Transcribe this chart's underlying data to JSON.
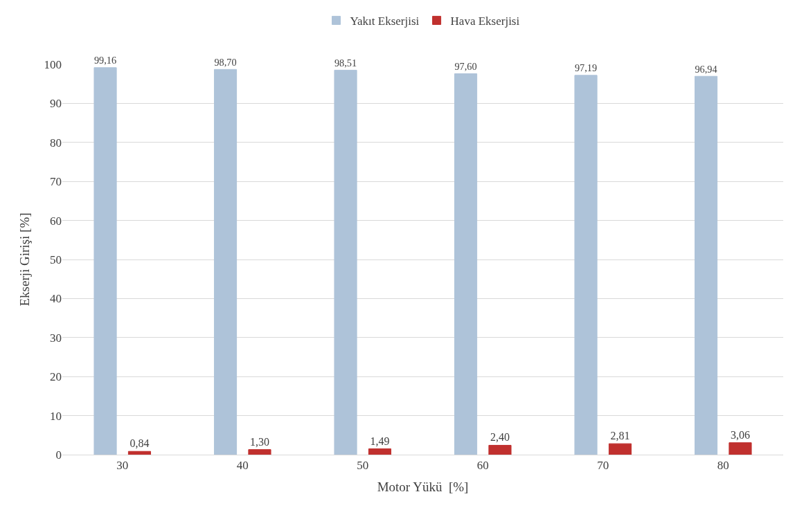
{
  "chart_data": {
    "type": "bar",
    "xlabel": "Motor Yükü  [%]",
    "ylabel": "Ekserji Girişi [%]",
    "categories": [
      "30",
      "40",
      "50",
      "60",
      "70",
      "80"
    ],
    "series": [
      {
        "name": "Yakıt Ekserjisi",
        "color": "#aec3d9",
        "values": [
          99.16,
          98.7,
          98.51,
          97.6,
          97.19,
          96.94
        ],
        "value_labels": [
          "99,16",
          "98,70",
          "98,51",
          "97,60",
          "97,19",
          "96,94"
        ]
      },
      {
        "name": "Hava Ekserjisi",
        "color": "#c0302e",
        "values": [
          0.84,
          1.3,
          1.49,
          2.4,
          2.81,
          3.06
        ],
        "value_labels": [
          "0,84",
          "1,30",
          "1,49",
          "2,40",
          "2,81",
          "3,06"
        ]
      }
    ],
    "ylim": [
      0,
      100
    ],
    "yticks": [
      0,
      10,
      20,
      30,
      40,
      50,
      60,
      70,
      80,
      90,
      100
    ],
    "grid": "y",
    "legend": "top"
  }
}
